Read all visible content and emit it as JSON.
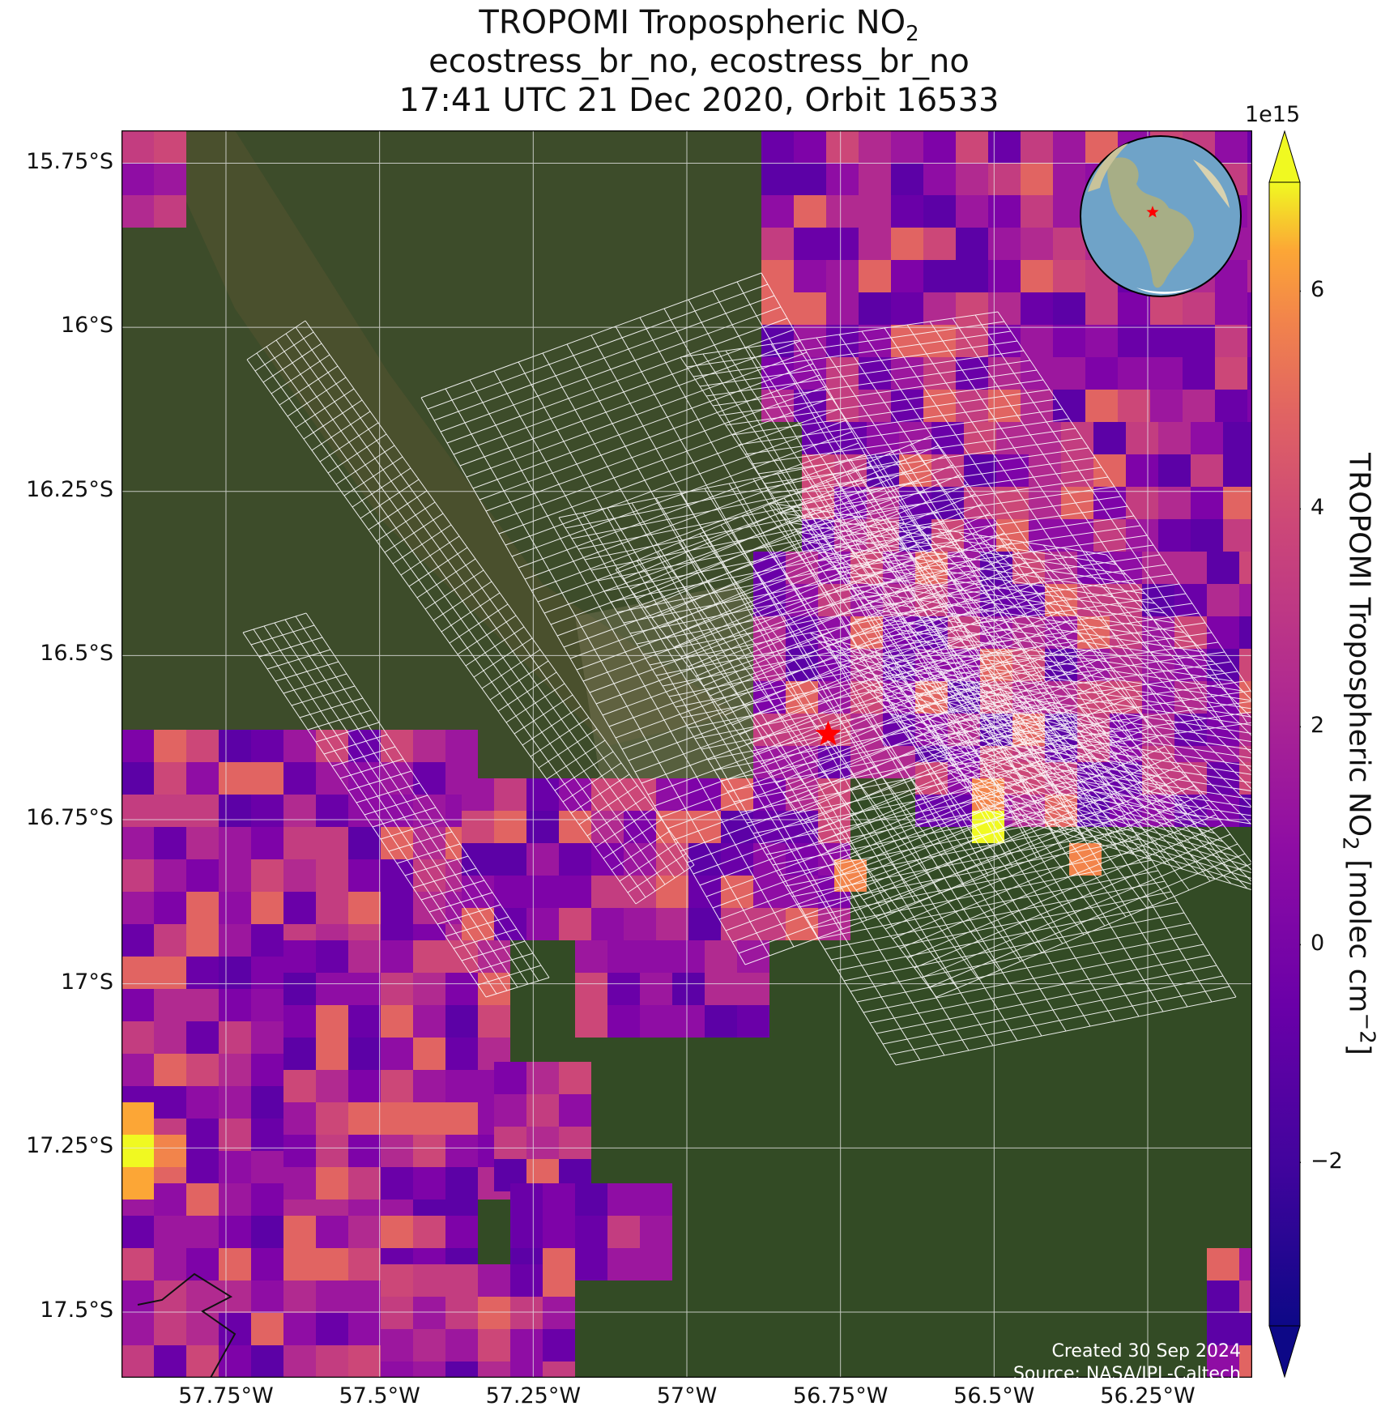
{
  "header": {
    "title_prefix": "TROPOMI Tropospheric NO",
    "title_sub": "2",
    "subtitle": "ecostress_br_no, ecostress_br_no",
    "time_line": "17:41 UTC 21 Dec 2020, Orbit 16533"
  },
  "map": {
    "lat_labels": [
      "15.75°S",
      "16°S",
      "16.25°S",
      "16.5°S",
      "16.75°S",
      "17°S",
      "17.25°S",
      "17.5°S"
    ],
    "lat_values": [
      -15.75,
      -16.0,
      -16.25,
      -16.5,
      -16.75,
      -17.0,
      -17.25,
      -17.5
    ],
    "lon_labels": [
      "57.75°W",
      "57.5°W",
      "57.25°W",
      "57°W",
      "56.75°W",
      "56.5°W",
      "56.25°W"
    ],
    "lon_values": [
      -57.75,
      -57.5,
      -57.25,
      -57.0,
      -56.75,
      -56.5,
      -56.25
    ],
    "extent": {
      "lon_min": -57.92,
      "lon_max": -56.08,
      "lat_min": -17.6,
      "lat_max": -15.7
    },
    "site_marker": {
      "lon": -56.77,
      "lat": -16.62,
      "color": "#ff0000",
      "icon": "star-icon"
    },
    "basemap": "satellite-imagery",
    "gridlines": true
  },
  "colorbar": {
    "exponent_label": "1e15",
    "tick_labels": [
      "6",
      "4",
      "2",
      "0",
      "−2"
    ],
    "tick_values": [
      6,
      4,
      2,
      0,
      -2
    ],
    "vmin": -3.5,
    "vmax": 7.0,
    "colormap": "plasma",
    "label_prefix": "TROPOMI Tropospheric NO",
    "label_sub": "2",
    "label_mid": " [molec cm",
    "label_sup": "−2",
    "label_end": "]"
  },
  "inset_globe": {
    "icon": "globe-icon",
    "marker_color": "#ff0000"
  },
  "credits": {
    "created": "Created 30 Sep 2024",
    "source": "Source: NASA/JPL-Caltech"
  }
}
